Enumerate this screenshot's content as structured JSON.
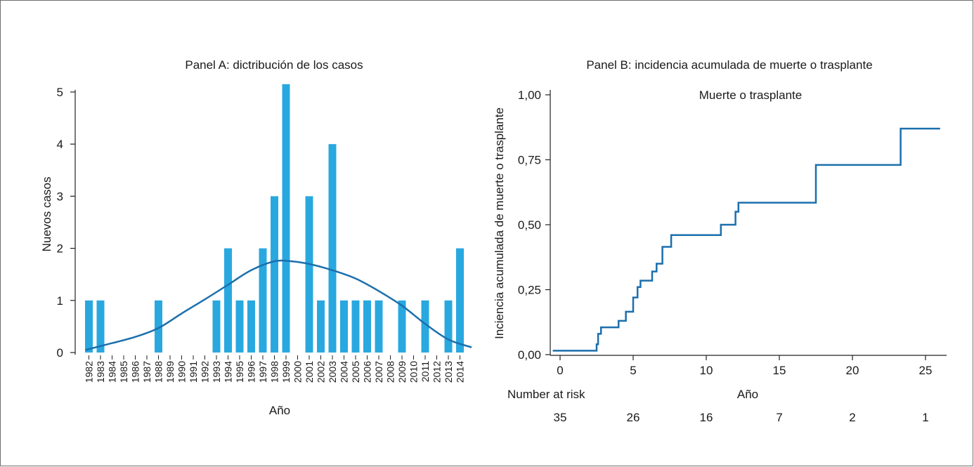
{
  "chart_data": [
    {
      "type": "bar",
      "title": "Panel A: dictribución de los casos",
      "xlabel": "Año",
      "ylabel": "Nuevos casos",
      "ylim": [
        0,
        5
      ],
      "yticks": [
        "0",
        "1",
        "2",
        "3",
        "4",
        "5"
      ],
      "categories": [
        "1982",
        "1983",
        "1984",
        "1985",
        "1986",
        "1987",
        "1988",
        "1989",
        "1990",
        "1991",
        "1992",
        "1993",
        "1994",
        "1995",
        "1996",
        "1997",
        "1998",
        "1999",
        "2000",
        "2001",
        "2002",
        "2003",
        "2004",
        "2005",
        "2006",
        "2007",
        "2008",
        "2009",
        "2010",
        "2011",
        "2012",
        "2013",
        "2014"
      ],
      "values": [
        1,
        1,
        0,
        0,
        0,
        0,
        1,
        0,
        0,
        0,
        0,
        1,
        2,
        1,
        1,
        2,
        3,
        5.15,
        0,
        3,
        1,
        4,
        1,
        1,
        1,
        1,
        0,
        1,
        0,
        1,
        0,
        1,
        2
      ],
      "smooth_curve": {
        "x": [
          1981.7,
          1984,
          1986,
          1988,
          1990,
          1992,
          1994,
          1996,
          1998,
          1999.5,
          2001,
          2003,
          2005,
          2007,
          2009,
          2011,
          2013,
          2015
        ],
        "y": [
          0.05,
          0.18,
          0.3,
          0.47,
          0.75,
          1.02,
          1.3,
          1.58,
          1.75,
          1.75,
          1.7,
          1.58,
          1.42,
          1.18,
          0.9,
          0.55,
          0.25,
          0.1
        ]
      },
      "bar_color": "#29a8e0",
      "line_color": "#1b6fad",
      "grid": false
    },
    {
      "type": "line",
      "title": "Panel B: incidencia acumulada de muerte o trasplante",
      "xlabel": "Año",
      "ylabel": "Inciencia acumulada de muerte o trasplante",
      "legend_text": "Muerte o trasplante",
      "xlim": [
        -0.5,
        26
      ],
      "ylim": [
        0,
        1
      ],
      "xticks": [
        "0",
        "5",
        "10",
        "15",
        "20",
        "25"
      ],
      "yticks": [
        "0,00",
        "0,25",
        "0,50",
        "0,75",
        "1,00"
      ],
      "step_points": {
        "x": [
          -0.5,
          2.3,
          2.5,
          2.6,
          2.8,
          4.0,
          4.5,
          5.0,
          5.3,
          5.5,
          6.0,
          6.3,
          6.6,
          7.0,
          7.6,
          11.0,
          12.0,
          12.2,
          12.4,
          17.5,
          23.3,
          26
        ],
        "y": [
          0.015,
          0.015,
          0.04,
          0.08,
          0.105,
          0.13,
          0.165,
          0.22,
          0.26,
          0.285,
          0.285,
          0.32,
          0.35,
          0.415,
          0.46,
          0.5,
          0.55,
          0.585,
          0.585,
          0.73,
          0.87,
          0.87
        ]
      },
      "line_color": "#1b6fad",
      "grid": false,
      "risk_table": {
        "label": "Number at risk",
        "values": [
          "35",
          "26",
          "16",
          "7",
          "2",
          "1"
        ]
      }
    }
  ]
}
